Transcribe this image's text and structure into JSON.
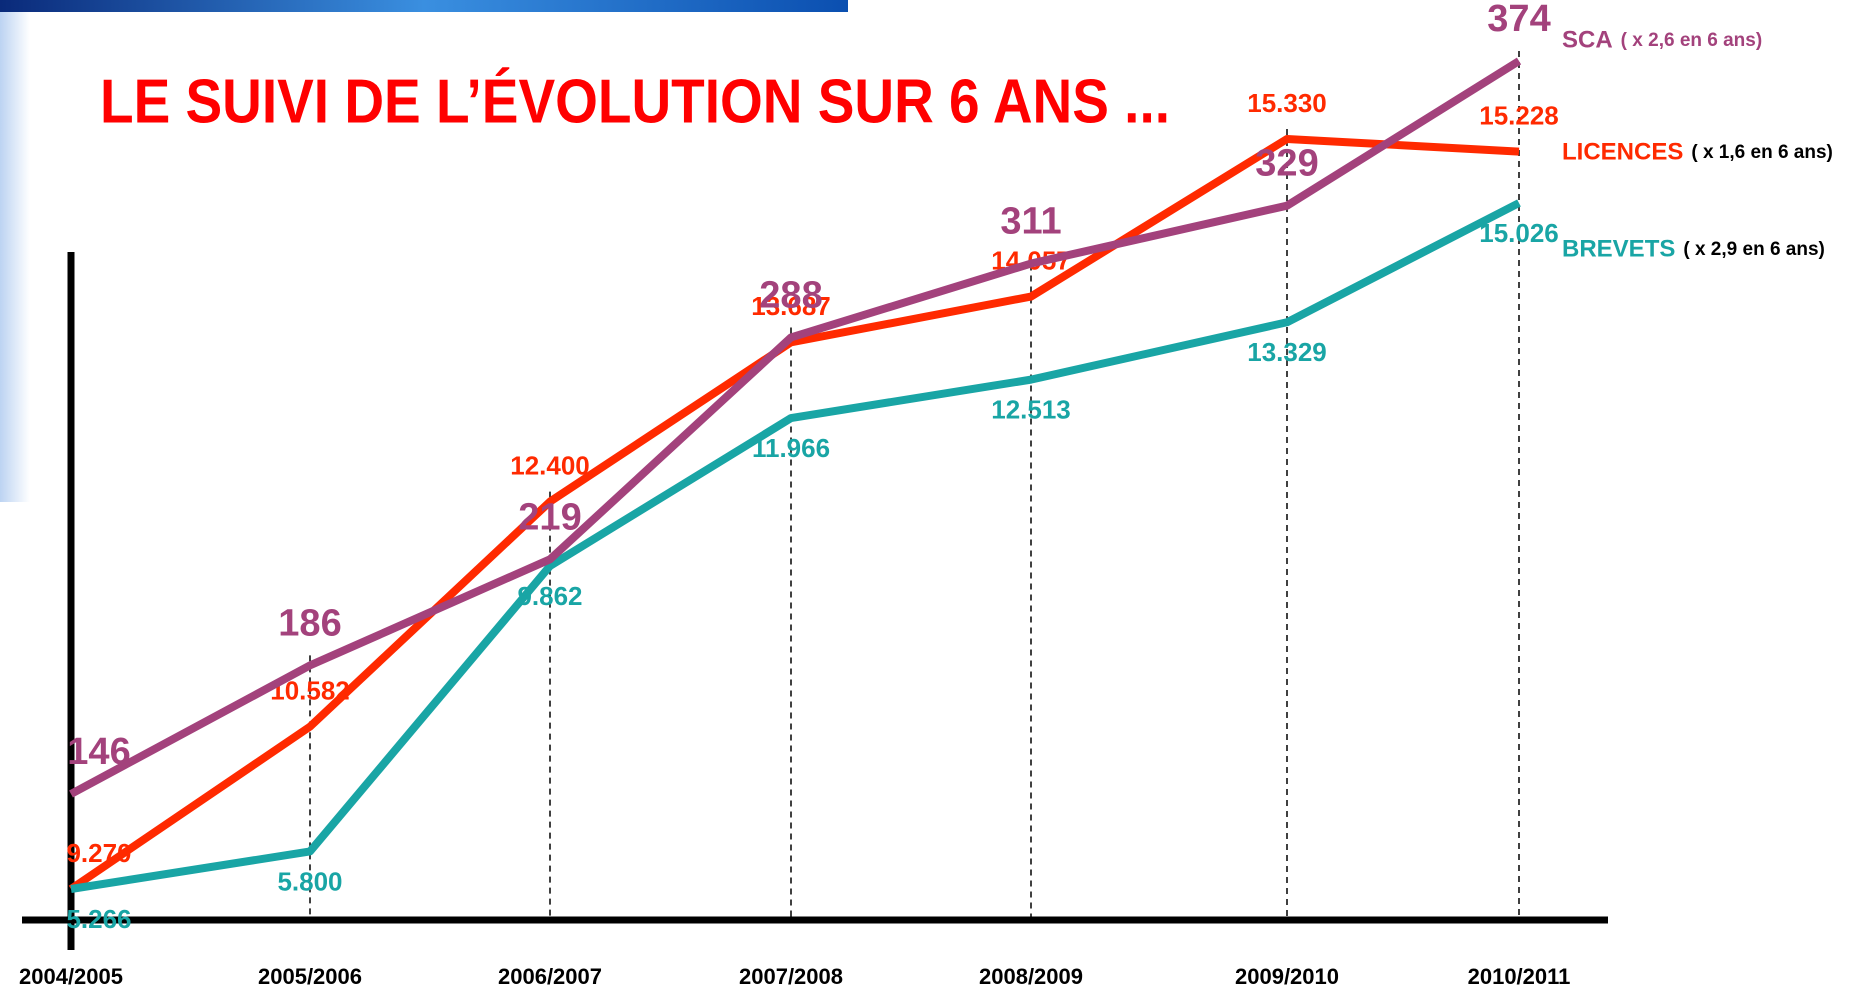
{
  "chart_data": {
    "type": "line",
    "title": "LE SUIVI DE L’ÉVOLUTION SUR 6 ANS ...",
    "categories": [
      "2004/2005",
      "2005/2006",
      "2006/2007",
      "2007/2008",
      "2008/2009",
      "2009/2010",
      "2010/2011"
    ],
    "series": [
      {
        "name": "LICENCES",
        "note": "( x 1,6 en 6 ans)",
        "color": "#ff2a00",
        "values": [
          9270,
          10582,
          12400,
          13687,
          14057,
          15330,
          15228
        ],
        "value_labels": [
          "9.270",
          "10.582",
          "12.400",
          "13.687",
          "14.057",
          "15.330",
          "15.228"
        ]
      },
      {
        "name": "BREVETS",
        "note": "( x 2,9 en 6 ans)",
        "color": "#19a5a5",
        "values": [
          5266,
          5800,
          9862,
          11966,
          12513,
          13329,
          15026
        ],
        "value_labels": [
          "5.266",
          "5.800",
          "9.862",
          "11.966",
          "12.513",
          "13.329",
          "15.026"
        ]
      },
      {
        "name": "SCA",
        "note": "( x 2,6 en 6 ans)",
        "color": "#a3427c",
        "values": [
          146,
          186,
          219,
          288,
          311,
          329,
          374
        ]
      }
    ]
  }
}
